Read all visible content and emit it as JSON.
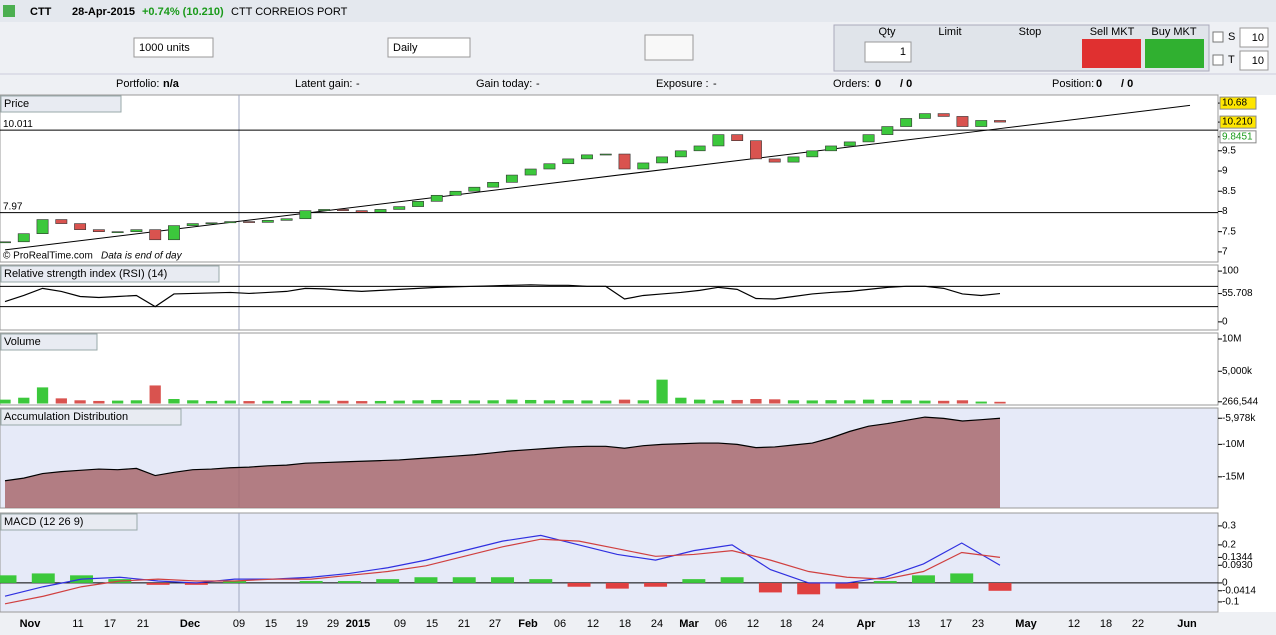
{
  "toolbar": {
    "symbol": "CTT",
    "date": "28-Apr-2015",
    "change": "+0.74% (10.210)",
    "name": "CTT CORREIOS PORT"
  },
  "controls": {
    "units": "1000 units",
    "period": "Daily",
    "qty_label": "Qty",
    "qty": "1",
    "limit": "Limit",
    "stop": "Stop",
    "sell": "Sell MKT",
    "buy": "Buy MKT",
    "s_label": "S",
    "s_value": "10",
    "t_label": "T",
    "t_value": "10"
  },
  "status": {
    "portfolio_label": "Portfolio:",
    "portfolio": "n/a",
    "latent_label": "Latent gain:",
    "latent": "-",
    "gain_label": "Gain today:",
    "gain": "-",
    "exposure_label": "Exposure :",
    "exposure": "-",
    "orders_label": "Orders:",
    "orders": "0",
    "orders_sep": "/ 0",
    "position_label": "Position:",
    "position": "0",
    "position_sep": "/ 0"
  },
  "x_axis": [
    "Nov",
    "11",
    "17",
    "21",
    "Dec",
    "09",
    "15",
    "19",
    "29",
    "2015",
    "09",
    "15",
    "21",
    "27",
    "Feb",
    "06",
    "12",
    "18",
    "24",
    "Mar",
    "06",
    "12",
    "18",
    "24",
    "Apr",
    "13",
    "17",
    "23",
    "May",
    "12",
    "18",
    "22",
    "Jun"
  ],
  "chart_data": [
    {
      "type": "candlestick",
      "title": "Price",
      "credit": "© ProRealTime.com",
      "note": "Data is end of day",
      "up_color": "#3cc83c",
      "down_color": "#d9534f",
      "values": [
        7.25,
        7.45,
        7.8,
        7.7,
        7.55,
        7.5,
        7.5,
        7.55,
        7.3,
        7.65,
        7.7,
        7.72,
        7.75,
        7.73,
        7.78,
        7.82,
        8.02,
        8.05,
        8.02,
        7.98,
        8.05,
        8.12,
        8.25,
        8.4,
        8.5,
        8.6,
        8.72,
        8.9,
        9.05,
        9.18,
        9.3,
        9.4,
        9.42,
        9.05,
        9.2,
        9.35,
        9.5,
        9.62,
        9.9,
        9.75,
        9.3,
        9.22,
        9.35,
        9.5,
        9.62,
        9.72,
        9.9,
        10.1,
        10.3,
        10.42,
        10.35,
        10.1,
        10.25,
        10.21
      ],
      "levels": [
        10.011,
        7.97
      ],
      "trend_line": [
        7.05,
        10.05
      ],
      "ylim": [
        6.75,
        10.88
      ],
      "yticks": [
        10.68,
        {
          "value": 10.21,
          "label": "10.210"
        },
        9.8451,
        9.5,
        9,
        8.5,
        8,
        7.5,
        7
      ]
    },
    {
      "type": "line",
      "title": "Relative strength index (RSI) (14)",
      "color": "#000000",
      "values": [
        40,
        52,
        66,
        60,
        50,
        48,
        50,
        52,
        30,
        55,
        56,
        57,
        58,
        56,
        58,
        60,
        66,
        65,
        62,
        60,
        62,
        64,
        66,
        68,
        69,
        70,
        71,
        72,
        73,
        72,
        72,
        70,
        70,
        45,
        52,
        55,
        58,
        62,
        68,
        64,
        46,
        45,
        50,
        55,
        58,
        60,
        64,
        68,
        70,
        70,
        66,
        55,
        52,
        55.708
      ],
      "levels": [
        70,
        30
      ],
      "ylim": [
        -16,
        112
      ],
      "yticks": [
        100,
        55.708,
        0
      ]
    },
    {
      "type": "bar",
      "title": "Volume",
      "up_color": "#3cc83c",
      "down_color": "#d9534f",
      "values": [
        600000,
        900000,
        2500000,
        800000,
        500000,
        400000,
        450000,
        500000,
        2800000,
        700000,
        500000,
        400000,
        450000,
        380000,
        420000,
        400000,
        500000,
        450000,
        420000,
        380000,
        400000,
        450000,
        500000,
        550000,
        520000,
        480000,
        500000,
        600000,
        550000,
        500000,
        520000,
        480000,
        450000,
        600000,
        500000,
        3700000,
        900000,
        600000,
        500000,
        550000,
        700000,
        650000,
        500000,
        480000,
        520000,
        500000,
        600000,
        550000,
        500000,
        450000,
        420000,
        500000,
        300000,
        266544
      ],
      "ylim": [
        -230000,
        10930000
      ],
      "yticks": [
        {
          "value": 10000000,
          "label": "10M"
        },
        {
          "value": 5000000,
          "label": "5,000k"
        },
        {
          "value": 266544,
          "label": "266,544"
        }
      ]
    },
    {
      "type": "area",
      "title": "Accumulation Distribution",
      "color": "#a86a6e",
      "values": [
        -15.6,
        -15.2,
        -14.5,
        -14.2,
        -14.0,
        -13.8,
        -13.9,
        -13.7,
        -14.8,
        -14.3,
        -13.9,
        -13.8,
        -13.6,
        -13.5,
        -13.3,
        -13.2,
        -12.9,
        -12.8,
        -12.7,
        -12.6,
        -12.5,
        -12.4,
        -12.2,
        -12.0,
        -11.8,
        -11.6,
        -11.3,
        -11.0,
        -10.8,
        -10.6,
        -10.4,
        -10.3,
        -10.3,
        -10.6,
        -10.2,
        -10.0,
        -9.9,
        -9.8,
        -9.8,
        -10.0,
        -10.5,
        -10.4,
        -10.1,
        -9.8,
        -9.0,
        -8.0,
        -7.2,
        -6.8,
        -6.3,
        -5.8,
        -6.0,
        -6.4,
        -6.2,
        -5.978
      ],
      "ylim": [
        -19.8,
        -4.4
      ],
      "yticks": [
        {
          "value": -5.978,
          "label": "-5,978k"
        },
        {
          "value": -10,
          "label": "-10M"
        },
        {
          "value": -15,
          "label": "-15M"
        }
      ]
    },
    {
      "type": "macd",
      "title": "MACD (12 26 9)",
      "series": [
        {
          "color": "#3030e0",
          "values": [
            -0.07,
            -0.02,
            0.02,
            0.03,
            0.01,
            0.0,
            0.02,
            0.02,
            0.03,
            0.05,
            0.08,
            0.12,
            0.17,
            0.22,
            0.25,
            0.2,
            0.15,
            0.12,
            0.17,
            0.2,
            0.07,
            0.0,
            0.0,
            0.03,
            0.1,
            0.21,
            0.093
          ]
        },
        {
          "color": "#d04040",
          "values": [
            -0.11,
            -0.07,
            -0.02,
            0.01,
            0.02,
            0.01,
            0.01,
            0.02,
            0.02,
            0.04,
            0.06,
            0.09,
            0.14,
            0.19,
            0.23,
            0.22,
            0.18,
            0.14,
            0.15,
            0.17,
            0.12,
            0.06,
            0.03,
            0.02,
            0.06,
            0.16,
            0.1344
          ]
        },
        {
          "color": "#3cc83c",
          "values": [
            0.04,
            0.05,
            0.04,
            0.02,
            -0.01,
            -0.01,
            0.01,
            0.0,
            0.01,
            0.01,
            0.02,
            0.03,
            0.03,
            0.03,
            0.02,
            -0.02,
            -0.03,
            -0.02,
            0.02,
            0.03,
            -0.05,
            -0.06,
            -0.03,
            0.01,
            0.04,
            0.05,
            -0.0414
          ]
        }
      ],
      "ylim": [
        -0.153,
        0.368
      ],
      "yticks": [
        0.3,
        0.2,
        0.1344,
        {
          "value": 0.093,
          "label": "0.0930"
        },
        0,
        -0.0414,
        -0.1
      ]
    }
  ]
}
